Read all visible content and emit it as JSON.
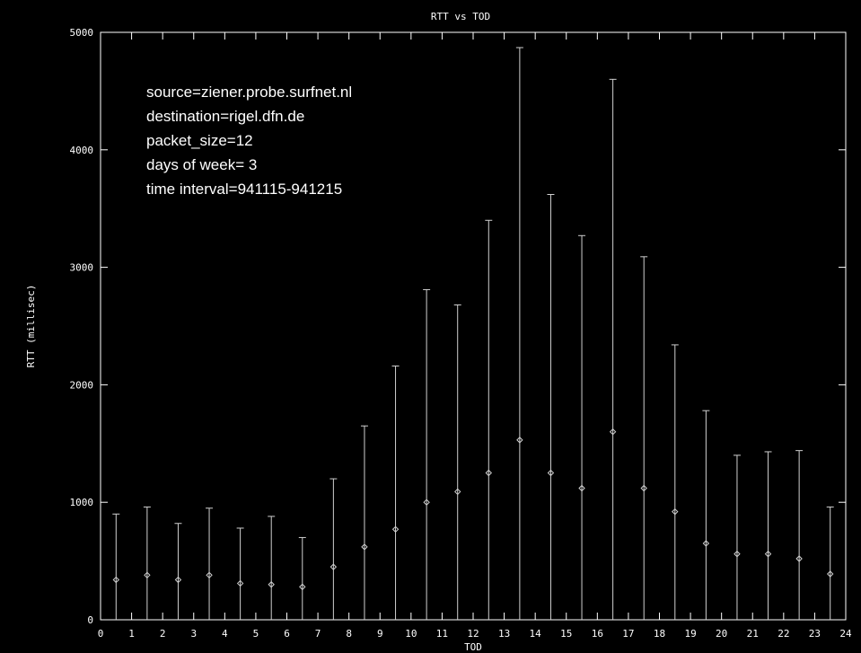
{
  "chart_data": {
    "type": "scatter",
    "title": "RTT vs TOD",
    "xlabel": "TOD",
    "ylabel": "RTT (millisec)",
    "xlim": [
      0,
      24
    ],
    "ylim": [
      0,
      5000
    ],
    "x_ticks": [
      0,
      1,
      2,
      3,
      4,
      5,
      6,
      7,
      8,
      9,
      10,
      11,
      12,
      13,
      14,
      15,
      16,
      17,
      18,
      19,
      20,
      21,
      22,
      23,
      24
    ],
    "y_ticks": [
      0,
      1000,
      2000,
      3000,
      4000,
      5000
    ],
    "annotations": [
      "source=ziener.probe.surfnet.nl",
      "destination=rigel.dfn.de",
      "packet_size=12",
      "days of week= 3",
      "time interval=941115-941215"
    ],
    "x": [
      0.5,
      1.5,
      2.5,
      3.5,
      4.5,
      5.5,
      6.5,
      7.5,
      8.5,
      9.5,
      10.5,
      11.5,
      12.5,
      13.5,
      14.5,
      15.5,
      16.5,
      17.5,
      18.5,
      19.5,
      20.5,
      21.5,
      22.5,
      23.5
    ],
    "y": [
      340,
      380,
      340,
      380,
      310,
      300,
      280,
      450,
      620,
      770,
      1000,
      1090,
      1250,
      1530,
      1250,
      1120,
      1600,
      1120,
      920,
      650,
      560,
      560,
      520,
      390
    ],
    "y_upper": [
      900,
      960,
      820,
      950,
      780,
      880,
      700,
      1200,
      1650,
      2160,
      2810,
      2680,
      3400,
      4870,
      3620,
      3270,
      4600,
      3090,
      2340,
      1780,
      1400,
      1430,
      1440,
      960
    ],
    "y_lower": [
      0,
      0,
      0,
      0,
      0,
      0,
      0,
      0,
      0,
      0,
      0,
      0,
      0,
      0,
      0,
      0,
      0,
      0,
      0,
      0,
      0,
      0,
      0,
      0
    ],
    "grid": false,
    "colors": {
      "background": "#000000",
      "foreground": "#ffffff",
      "data": "#d0d0d0"
    }
  }
}
